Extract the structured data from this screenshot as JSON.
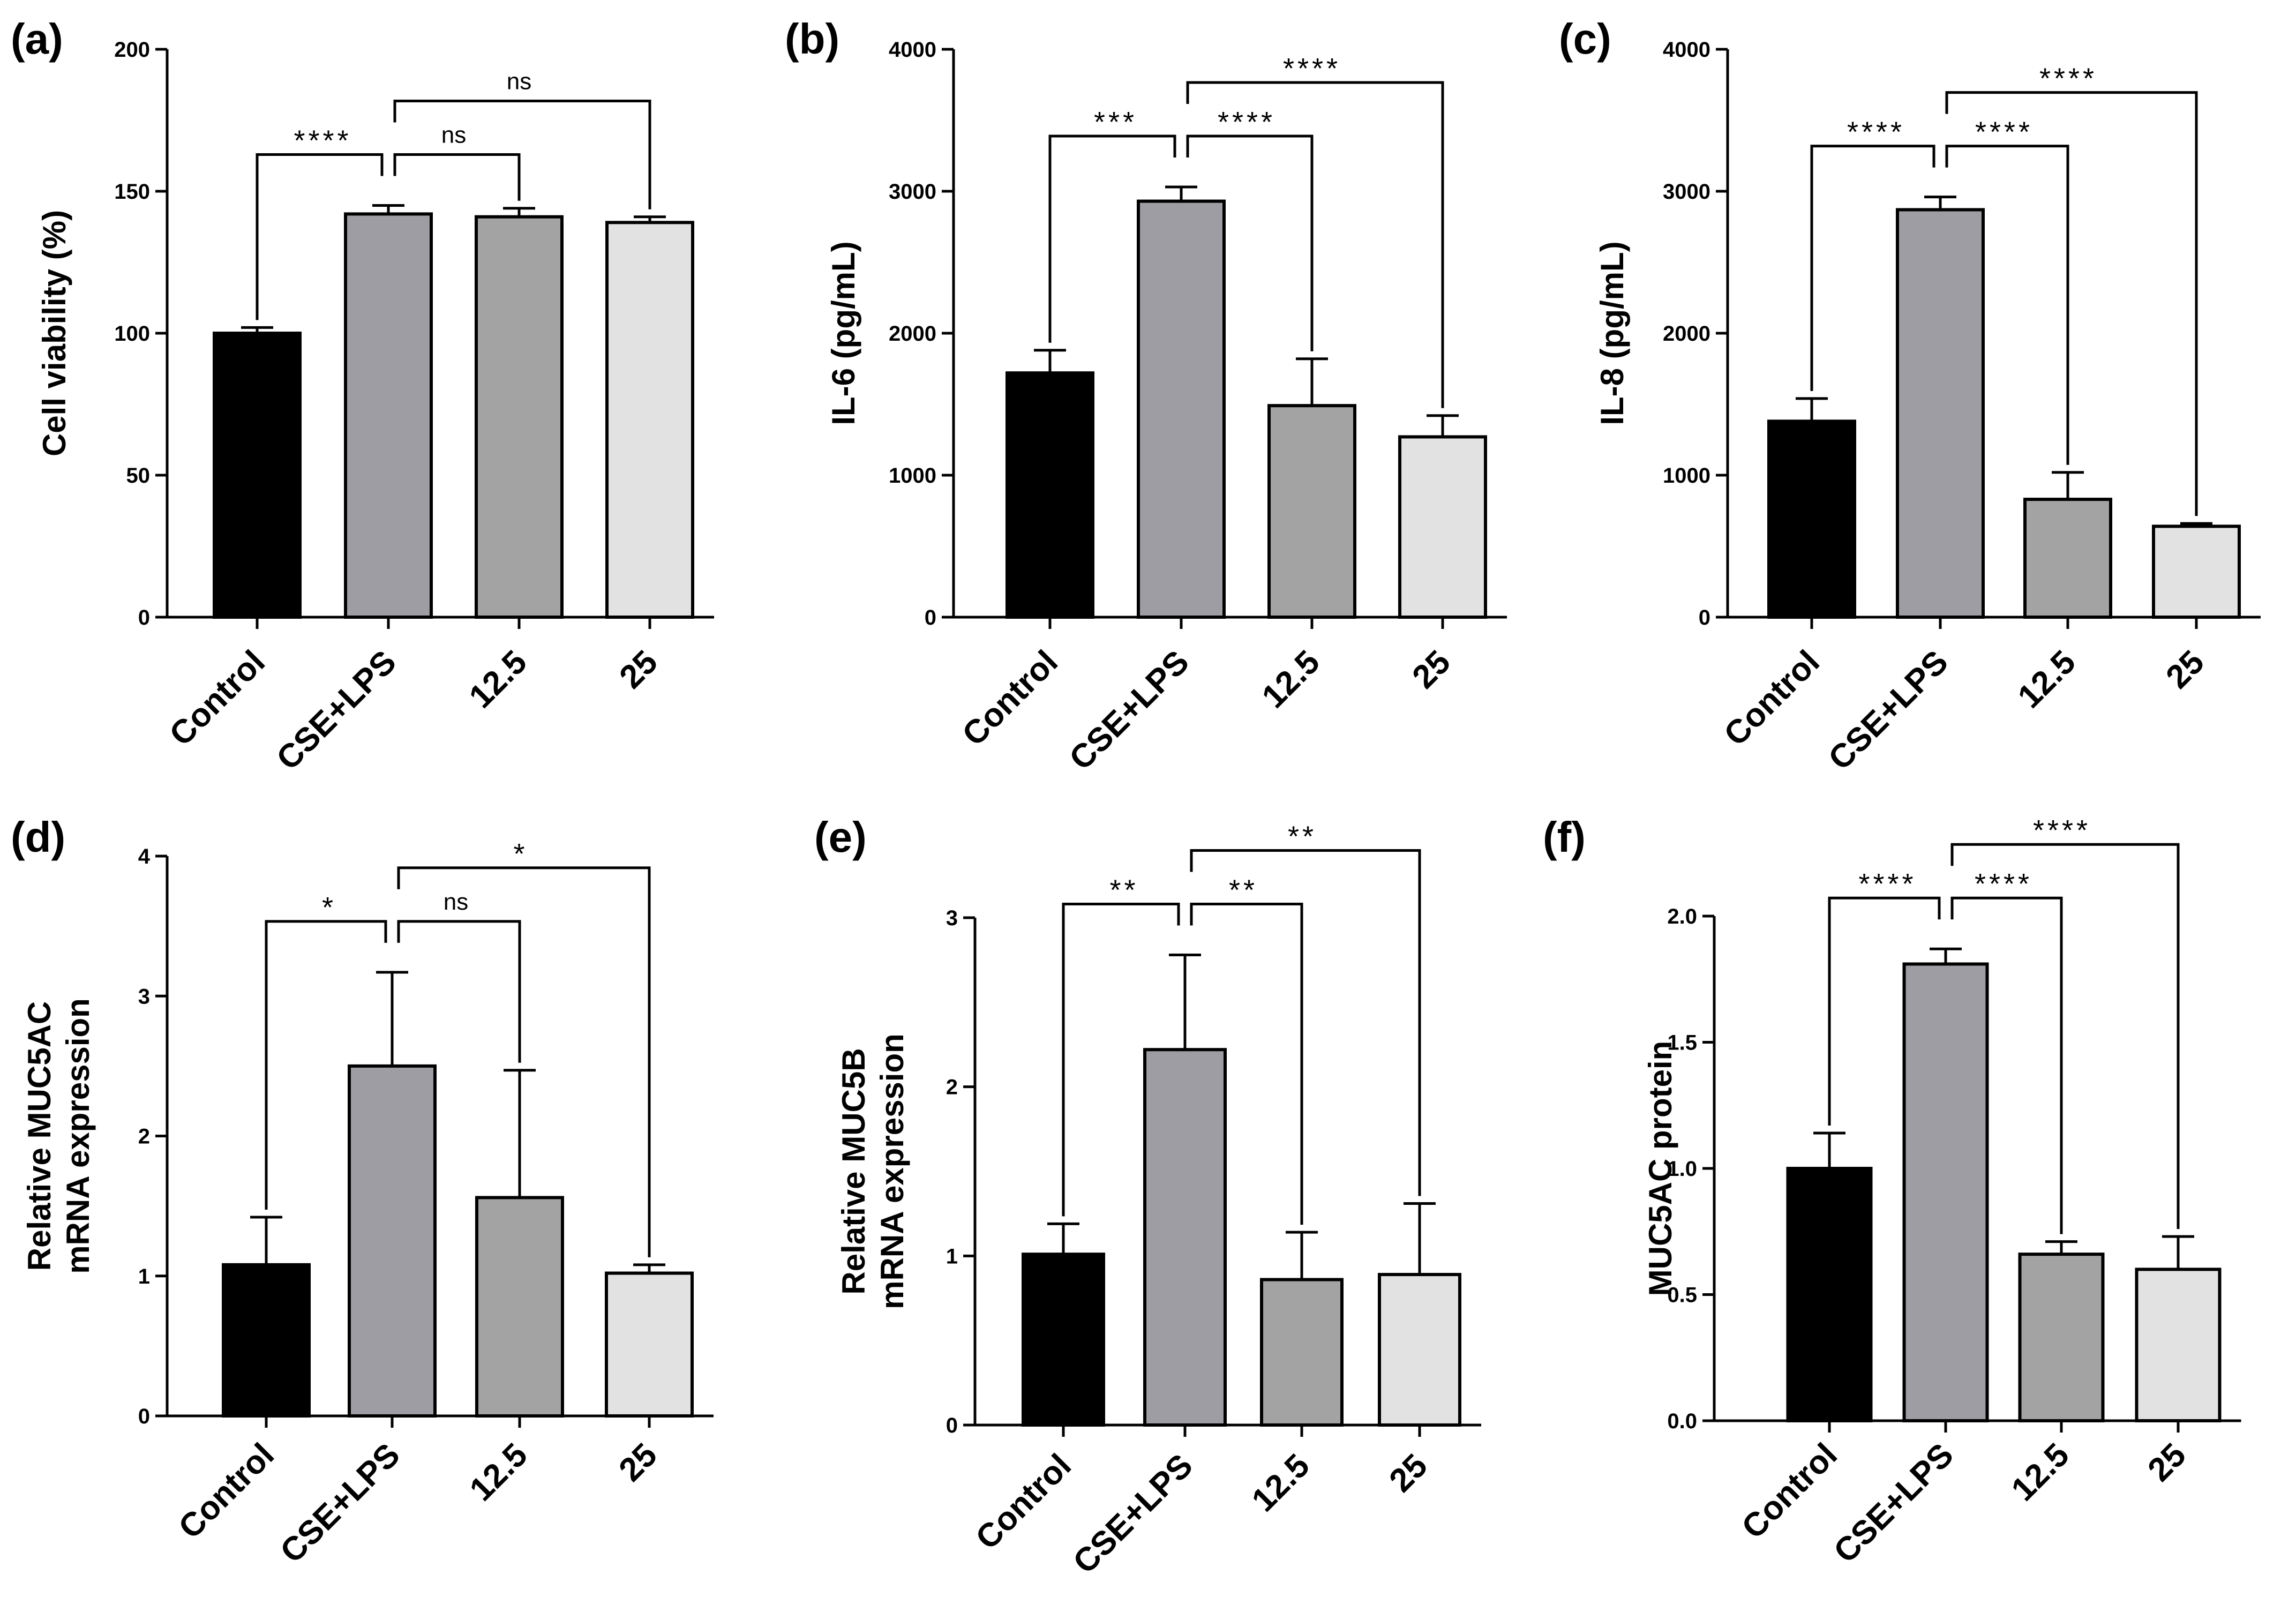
{
  "figure": {
    "categories": [
      "Control",
      "CSE+LPS",
      "12.5",
      "25"
    ],
    "bar_colors": [
      "#000000",
      "#9d9da3",
      "#a3a3a3",
      "#e2e2e2"
    ],
    "edge_color": "#000000"
  },
  "chart_data": [
    {
      "panel": "(a)",
      "type": "bar",
      "title": "",
      "xlabel": "",
      "ylabel": [
        "Cell viability (%)"
      ],
      "categories": [
        "Control",
        "CSE+LPS",
        "12.5",
        "25"
      ],
      "values": [
        100,
        142,
        141,
        139
      ],
      "errors": [
        2,
        3,
        3,
        2
      ],
      "ylim": [
        0,
        200
      ],
      "yticks": [
        0,
        50,
        100,
        150,
        200
      ],
      "ytick_labels": [
        "0",
        "50",
        "100",
        "150",
        "200"
      ],
      "comparisons": [
        {
          "from": 0,
          "to": 1,
          "label": "****",
          "level": 0
        },
        {
          "from": 1,
          "to": 2,
          "label": "ns",
          "level": 0
        },
        {
          "from": 1,
          "to": 3,
          "label": "ns",
          "level": 1
        }
      ]
    },
    {
      "panel": "(b)",
      "type": "bar",
      "title": "",
      "xlabel": "",
      "ylabel": [
        "IL-6 (pg/mL)"
      ],
      "categories": [
        "Control",
        "CSE+LPS",
        "12.5",
        "25"
      ],
      "values": [
        1720,
        2930,
        1490,
        1270
      ],
      "errors": [
        160,
        100,
        330,
        150
      ],
      "ylim": [
        0,
        4000
      ],
      "yticks": [
        0,
        1000,
        2000,
        3000,
        4000
      ],
      "ytick_labels": [
        "0",
        "1000",
        "2000",
        "3000",
        "4000"
      ],
      "comparisons": [
        {
          "from": 0,
          "to": 1,
          "label": "***",
          "level": 0
        },
        {
          "from": 1,
          "to": 2,
          "label": "****",
          "level": 0
        },
        {
          "from": 1,
          "to": 3,
          "label": "****",
          "level": 1
        }
      ]
    },
    {
      "panel": "(c)",
      "type": "bar",
      "title": "",
      "xlabel": "",
      "ylabel": [
        "IL-8 (pg/mL)"
      ],
      "categories": [
        "Control",
        "CSE+LPS",
        "12.5",
        "25"
      ],
      "values": [
        1380,
        2870,
        830,
        640
      ],
      "errors": [
        160,
        90,
        190,
        20
      ],
      "ylim": [
        0,
        4000
      ],
      "yticks": [
        0,
        1000,
        2000,
        3000,
        4000
      ],
      "ytick_labels": [
        "0",
        "1000",
        "2000",
        "3000",
        "4000"
      ],
      "comparisons": [
        {
          "from": 0,
          "to": 1,
          "label": "****",
          "level": 0
        },
        {
          "from": 1,
          "to": 2,
          "label": "****",
          "level": 0
        },
        {
          "from": 1,
          "to": 3,
          "label": "****",
          "level": 1
        }
      ]
    },
    {
      "panel": "(d)",
      "type": "bar",
      "title": "",
      "xlabel": "",
      "ylabel": [
        "Relative MUC5AC",
        "mRNA expression"
      ],
      "categories": [
        "Control",
        "CSE+LPS",
        "12.5",
        "25"
      ],
      "values": [
        1.08,
        2.5,
        1.56,
        1.02
      ],
      "errors": [
        0.34,
        0.67,
        0.91,
        0.06
      ],
      "ylim": [
        0,
        4
      ],
      "yticks": [
        0,
        1,
        2,
        3,
        4
      ],
      "ytick_labels": [
        "0",
        "1",
        "2",
        "3",
        "4"
      ],
      "comparisons": [
        {
          "from": 0,
          "to": 1,
          "label": "*",
          "level": 0
        },
        {
          "from": 1,
          "to": 2,
          "label": "ns",
          "level": 0
        },
        {
          "from": 1,
          "to": 3,
          "label": "*",
          "level": 1
        }
      ]
    },
    {
      "panel": "(e)",
      "type": "bar",
      "title": "",
      "xlabel": "",
      "ylabel": [
        "Relative MUC5B",
        "mRNA expression"
      ],
      "categories": [
        "Control",
        "CSE+LPS",
        "12.5",
        "25"
      ],
      "values": [
        1.01,
        2.22,
        0.86,
        0.89
      ],
      "errors": [
        0.18,
        0.56,
        0.28,
        0.42
      ],
      "ylim": [
        0,
        3
      ],
      "yticks": [
        0,
        1,
        2,
        3
      ],
      "ytick_labels": [
        "0",
        "1",
        "2",
        "3"
      ],
      "comparisons": [
        {
          "from": 0,
          "to": 1,
          "label": "**",
          "level": 0
        },
        {
          "from": 1,
          "to": 2,
          "label": "**",
          "level": 0
        },
        {
          "from": 1,
          "to": 3,
          "label": "**",
          "level": 1
        }
      ]
    },
    {
      "panel": "(f)",
      "type": "bar",
      "title": "",
      "xlabel": "",
      "ylabel": [
        "MUC5AC protein"
      ],
      "categories": [
        "Control",
        "CSE+LPS",
        "12.5",
        "25"
      ],
      "values": [
        1.0,
        1.81,
        0.66,
        0.6
      ],
      "errors": [
        0.14,
        0.06,
        0.05,
        0.13
      ],
      "ylim": [
        0,
        2.0
      ],
      "yticks": [
        0,
        0.5,
        1.0,
        1.5,
        2.0
      ],
      "ytick_labels": [
        "0.0",
        "0.5",
        "1.0",
        "1.5",
        "2.0"
      ],
      "comparisons": [
        {
          "from": 0,
          "to": 1,
          "label": "****",
          "level": 0
        },
        {
          "from": 1,
          "to": 2,
          "label": "****",
          "level": 0
        },
        {
          "from": 1,
          "to": 3,
          "label": "****",
          "level": 1
        }
      ]
    }
  ]
}
